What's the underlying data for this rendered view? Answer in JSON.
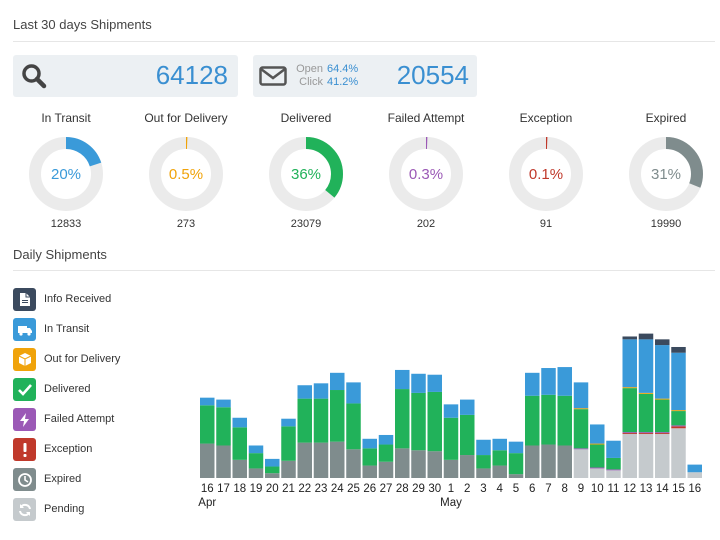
{
  "header": {
    "title": "Last 30 days Shipments"
  },
  "totals": {
    "shipments": "64128",
    "email": {
      "open_label": "Open",
      "open_value": "64.4%",
      "click_label": "Click",
      "click_value": "41.2%",
      "count": "20554"
    }
  },
  "statuses": [
    {
      "label": "In Transit",
      "percent": "20%",
      "fraction": 0.2,
      "count": "12833",
      "color": "#3a9ad9"
    },
    {
      "label": "Out for Delivery",
      "percent": "0.5%",
      "fraction": 0.005,
      "count": "273",
      "color": "#f0a30a"
    },
    {
      "label": "Delivered",
      "percent": "36%",
      "fraction": 0.36,
      "count": "23079",
      "color": "#21b25a"
    },
    {
      "label": "Failed Attempt",
      "percent": "0.3%",
      "fraction": 0.003,
      "count": "202",
      "color": "#9b59b6"
    },
    {
      "label": "Exception",
      "percent": "0.1%",
      "fraction": 0.001,
      "count": "91",
      "color": "#c0392b"
    },
    {
      "label": "Expired",
      "percent": "31%",
      "fraction": 0.31,
      "count": "19990",
      "color": "#7f8c8d"
    }
  ],
  "daily": {
    "title": "Daily Shipments"
  },
  "legend": [
    {
      "label": "Info Received",
      "color": "#3b4a5e",
      "icon": "document-icon"
    },
    {
      "label": "In Transit",
      "color": "#3a9ad9",
      "icon": "truck-icon"
    },
    {
      "label": "Out for Delivery",
      "color": "#f0a30a",
      "icon": "box-icon"
    },
    {
      "label": "Delivered",
      "color": "#21b25a",
      "icon": "check-icon"
    },
    {
      "label": "Failed Attempt",
      "color": "#9b59b6",
      "icon": "lightning-icon"
    },
    {
      "label": "Exception",
      "color": "#c0392b",
      "icon": "exclamation-icon"
    },
    {
      "label": "Expired",
      "color": "#7f8c8d",
      "icon": "clock-icon"
    },
    {
      "label": "Pending",
      "color": "#c5cacd",
      "icon": "refresh-icon"
    }
  ],
  "chart_data": {
    "type": "bar",
    "stacked": true,
    "categories": [
      "16",
      "17",
      "18",
      "19",
      "20",
      "21",
      "22",
      "23",
      "24",
      "25",
      "26",
      "27",
      "28",
      "29",
      "30",
      "1",
      "2",
      "3",
      "4",
      "5",
      "6",
      "7",
      "8",
      "9",
      "10",
      "11",
      "12",
      "13",
      "14",
      "15",
      "16"
    ],
    "month_labels": [
      {
        "index": 0,
        "label": "Apr"
      },
      {
        "index": 15,
        "label": "May"
      }
    ],
    "series": [
      {
        "name": "Pending",
        "color": "#c5cacd",
        "values": [
          0,
          0,
          0,
          0,
          0,
          0,
          0,
          0,
          0,
          0,
          0,
          0,
          0,
          0,
          0,
          0,
          0,
          0,
          0,
          0,
          0,
          0,
          0,
          30,
          10,
          8,
          46,
          46,
          46,
          52,
          6
        ]
      },
      {
        "name": "Expired",
        "color": "#7f8c8d",
        "values": [
          36,
          34,
          19,
          10,
          5,
          18,
          37,
          37,
          38,
          30,
          13,
          17,
          31,
          29,
          28,
          19,
          24,
          10,
          13,
          4,
          34,
          35,
          34,
          0,
          0,
          0,
          0,
          0,
          0,
          0,
          0
        ]
      },
      {
        "name": "Exception",
        "color": "#c0392b",
        "values": [
          0,
          0,
          0,
          0,
          0,
          0,
          0,
          0,
          0,
          0,
          0,
          0,
          0,
          0,
          0,
          0,
          0,
          0,
          0,
          0,
          0,
          0,
          0,
          0,
          0,
          0,
          1,
          1,
          1,
          2,
          0
        ]
      },
      {
        "name": "Failed Attempt",
        "color": "#9b59b6",
        "values": [
          0,
          0,
          0,
          0,
          0,
          0,
          0,
          0,
          0,
          0,
          0,
          0,
          0,
          0,
          0,
          0,
          0,
          0,
          0,
          0,
          0,
          0,
          0,
          1,
          1,
          1,
          1,
          1,
          1,
          1,
          0
        ]
      },
      {
        "name": "Delivered",
        "color": "#21b25a",
        "values": [
          40,
          40,
          34,
          16,
          7,
          36,
          46,
          46,
          54,
          48,
          18,
          18,
          62,
          60,
          62,
          44,
          42,
          14,
          16,
          22,
          52,
          52,
          52,
          41,
          24,
          12,
          46,
          40,
          34,
          15,
          0
        ]
      },
      {
        "name": "Out for Delivery",
        "color": "#f0a30a",
        "values": [
          0,
          0,
          0,
          0,
          0,
          0,
          0,
          0,
          0,
          0,
          0,
          0,
          0,
          0,
          0,
          0,
          0,
          0,
          0,
          0,
          0,
          0,
          0,
          1,
          1,
          0,
          1,
          1,
          1,
          1,
          0
        ]
      },
      {
        "name": "In Transit",
        "color": "#3a9ad9",
        "values": [
          8,
          8,
          10,
          8,
          8,
          8,
          14,
          16,
          18,
          22,
          10,
          10,
          20,
          20,
          18,
          14,
          16,
          16,
          12,
          12,
          24,
          28,
          30,
          27,
          20,
          18,
          50,
          56,
          56,
          60,
          8
        ]
      },
      {
        "name": "Info Received",
        "color": "#3b4a5e",
        "values": [
          0,
          0,
          0,
          0,
          0,
          0,
          0,
          0,
          0,
          0,
          0,
          0,
          0,
          0,
          0,
          0,
          0,
          0,
          0,
          0,
          0,
          0,
          0,
          0,
          0,
          0,
          3,
          6,
          6,
          6,
          0
        ]
      }
    ],
    "ylim": [
      0,
      160
    ]
  }
}
